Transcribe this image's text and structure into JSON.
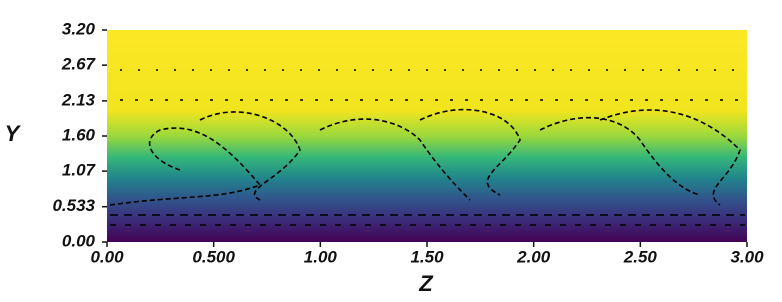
{
  "chart_data": {
    "type": "vector-field",
    "x_label": "Z",
    "y_label": "Y",
    "xlim": [
      0,
      3
    ],
    "ylim": [
      0,
      3.2
    ],
    "xticks": [
      {
        "value": 0,
        "label": "0.00"
      },
      {
        "value": 0.5,
        "label": "0.500"
      },
      {
        "value": 1,
        "label": "1.00"
      },
      {
        "value": 1.5,
        "label": "1.50"
      },
      {
        "value": 2,
        "label": "2.00"
      },
      {
        "value": 2.5,
        "label": "2.50"
      },
      {
        "value": 3,
        "label": "3.00"
      }
    ],
    "yticks": [
      {
        "value": 0,
        "label": "0.00"
      },
      0.533,
      {
        "value": 1.07,
        "label": "1.07"
      },
      {
        "value": 1.6,
        "label": "1.60"
      },
      {
        "value": 2.13,
        "label": "2.13"
      },
      {
        "value": 2.67,
        "label": "2.67"
      },
      {
        "value": 3.2,
        "label": "3.20"
      }
    ]
  }
}
